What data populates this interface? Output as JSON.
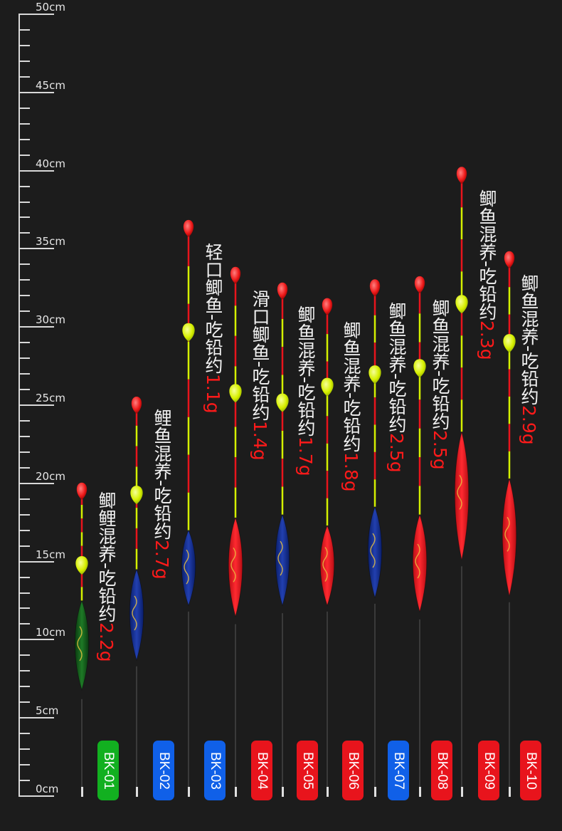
{
  "ruler": {
    "labels": [
      "50cm",
      "45cm",
      "40cm",
      "35cm",
      "30cm",
      "25cm",
      "20cm",
      "15cm",
      "10cm",
      "5cm",
      "0cm"
    ]
  },
  "colors": {
    "green": "#12b020",
    "blue": "#1060e8",
    "red": "#e8141c"
  },
  "floats": [
    {
      "code": "BK-01",
      "badge_color": "green",
      "body_color": "green",
      "desc": "鲫鲤混养-吃铅约",
      "weight": "2.2g",
      "tip_cm": 19.5,
      "ball_cm": 14.8,
      "body_top_cm": 12.5,
      "body_bottom_cm": 6.8,
      "stem_bottom_cm": 6.2
    },
    {
      "code": "BK-02",
      "badge_color": "blue",
      "body_color": "blue",
      "desc": "鲤鱼混养-吃铅约",
      "weight": "2.7g",
      "tip_cm": 25.0,
      "ball_cm": 19.3,
      "body_top_cm": 14.5,
      "body_bottom_cm": 8.7,
      "stem_bottom_cm": 8.3
    },
    {
      "code": "BK-03",
      "badge_color": "blue",
      "body_color": "blue",
      "desc": "轻口鲫鱼-吃铅约",
      "weight": "1.1g",
      "tip_cm": 36.3,
      "ball_cm": 29.7,
      "body_top_cm": 17.0,
      "body_bottom_cm": 12.2,
      "stem_bottom_cm": 11.8
    },
    {
      "code": "BK-04",
      "badge_color": "red",
      "body_color": "red",
      "desc": "滑口鲫鱼-吃铅约",
      "weight": "1.4g",
      "tip_cm": 33.3,
      "ball_cm": 25.8,
      "body_top_cm": 17.8,
      "body_bottom_cm": 11.5,
      "stem_bottom_cm": 11.0
    },
    {
      "code": "BK-05",
      "badge_color": "red",
      "body_color": "blue",
      "desc": "鲫鱼混养-吃铅约",
      "weight": "1.7g",
      "tip_cm": 32.3,
      "ball_cm": 25.2,
      "body_top_cm": 18.0,
      "body_bottom_cm": 12.2,
      "stem_bottom_cm": 11.7
    },
    {
      "code": "BK-06",
      "badge_color": "red",
      "body_color": "red",
      "desc": "鲫鱼混养-吃铅约",
      "weight": "1.8g",
      "tip_cm": 31.3,
      "ball_cm": 26.2,
      "body_top_cm": 17.3,
      "body_bottom_cm": 12.2,
      "stem_bottom_cm": 11.8
    },
    {
      "code": "BK-07",
      "badge_color": "blue",
      "body_color": "blue",
      "desc": "鲫鱼混养-吃铅约",
      "weight": "2.5g",
      "tip_cm": 32.5,
      "ball_cm": 27.0,
      "body_top_cm": 18.5,
      "body_bottom_cm": 12.7,
      "stem_bottom_cm": 12.3
    },
    {
      "code": "BK-08",
      "badge_color": "red",
      "body_color": "red",
      "desc": "鲫鱼混养-吃铅约",
      "weight": "2.5g",
      "tip_cm": 32.7,
      "ball_cm": 27.4,
      "body_top_cm": 18.0,
      "body_bottom_cm": 11.8,
      "stem_bottom_cm": 11.3
    },
    {
      "code": "BK-09",
      "badge_color": "red",
      "body_color": "red",
      "desc": "鲫鱼混养-吃铅约",
      "weight": "2.3g",
      "tip_cm": 39.7,
      "ball_cm": 31.5,
      "body_top_cm": 23.3,
      "body_bottom_cm": 15.1,
      "stem_bottom_cm": 14.7
    },
    {
      "code": "BK-10",
      "badge_color": "red",
      "body_color": "red",
      "desc": "鲫鱼混养-吃铅约",
      "weight": "2.9g",
      "tip_cm": 34.3,
      "ball_cm": 29.0,
      "body_top_cm": 20.3,
      "body_bottom_cm": 12.8,
      "stem_bottom_cm": 12.4
    }
  ]
}
